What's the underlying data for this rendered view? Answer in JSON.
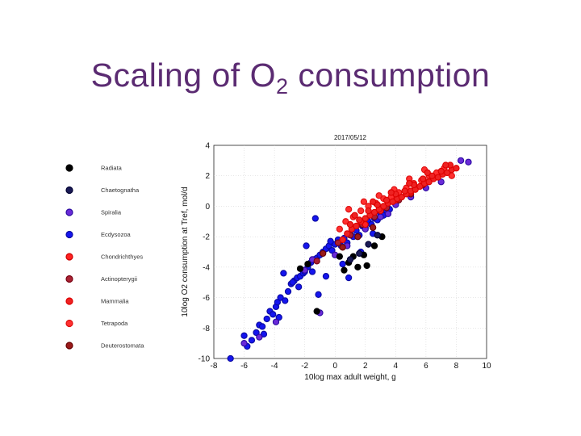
{
  "slide": {
    "title_main": "Scaling of O",
    "title_sub": "2",
    "title_rest": " consumption"
  },
  "chart_data": {
    "type": "scatter",
    "title": "2017/05/12",
    "xlabel": "10log max adult weight, g",
    "ylabel": "10log O2 consumption at Tref, mol/d",
    "xlim": [
      -8,
      10
    ],
    "ylim": [
      -10,
      4
    ],
    "xticks": [
      "-8",
      "-6",
      "-4",
      "-2",
      "0",
      "2",
      "4",
      "6",
      "8",
      "10"
    ],
    "yticks": [
      "4",
      "2",
      "0",
      "-2",
      "-4",
      "-6",
      "-8",
      "-10"
    ],
    "legend_position": "left",
    "series": [
      {
        "name": "Radiata",
        "color": "#000000",
        "stroke": "#000000",
        "x": [
          -2.3,
          -1.8,
          -1.2,
          0.3,
          0.9,
          1.5,
          2.1,
          1.9,
          2.6,
          3.1,
          1.2,
          0.6
        ],
        "y": [
          -4.1,
          -3.8,
          -6.9,
          -3.3,
          -3.7,
          -4.0,
          -3.9,
          -3.2,
          -2.6,
          -2.0,
          -3.3,
          -4.2
        ]
      },
      {
        "name": "Chaetognatha",
        "color": "#1a1a55",
        "stroke": "#000033",
        "x": [
          1.0,
          1.6,
          2.2,
          2.8
        ],
        "y": [
          -3.5,
          -3.1,
          -2.5,
          -1.9
        ]
      },
      {
        "name": "Spiralia",
        "color": "#6a2ad8",
        "stroke": "#2a0aa0",
        "x": [
          -6.0,
          -5.0,
          -3.9,
          -2.0,
          -1.5,
          -1.0,
          0.0,
          0.8,
          2.0,
          3.0,
          4.0,
          5.0,
          6.0,
          7.0,
          8.3,
          8.8,
          1.5,
          3.5
        ],
        "y": [
          -9.0,
          -8.6,
          -7.6,
          -4.2,
          -3.5,
          -7.0,
          -3.2,
          -2.6,
          -1.5,
          -0.7,
          0.1,
          0.6,
          1.2,
          1.6,
          3.0,
          2.9,
          -2.0,
          -0.5
        ]
      },
      {
        "name": "Ecdysozoa",
        "color": "#1515ee",
        "stroke": "#0a0aa0",
        "x": [
          -6.9,
          -6.0,
          -5.8,
          -5.5,
          -5.2,
          -5.0,
          -4.8,
          -4.5,
          -4.3,
          -4.1,
          -3.9,
          -3.8,
          -3.6,
          -3.3,
          -3.1,
          -2.9,
          -2.7,
          -2.5,
          -2.3,
          -2.1,
          -2.0,
          -1.8,
          -1.6,
          -1.4,
          -1.2,
          -1.0,
          -0.8,
          -0.6,
          -0.4,
          -0.2,
          0.0,
          0.2,
          0.4,
          0.6,
          0.8,
          1.0,
          1.2,
          1.4,
          1.6,
          1.8,
          2.0,
          2.2,
          2.4,
          2.6,
          2.8,
          3.0,
          3.2,
          3.4,
          3.6,
          -1.3,
          -1.9,
          -0.3,
          -2.4,
          -3.4,
          -1.1,
          0.5,
          -0.6,
          1.7,
          2.5,
          -4.7,
          -3.7,
          -2.8,
          -1.5,
          0.9
        ],
        "y": [
          -10.0,
          -8.5,
          -9.2,
          -8.8,
          -8.3,
          -7.8,
          -7.9,
          -7.4,
          -6.9,
          -7.1,
          -6.6,
          -6.3,
          -6.0,
          -6.2,
          -5.6,
          -5.1,
          -4.9,
          -4.7,
          -4.6,
          -4.4,
          -4.3,
          -4.0,
          -3.7,
          -3.5,
          -3.4,
          -3.2,
          -3.0,
          -2.8,
          -2.6,
          -2.9,
          -2.5,
          -2.2,
          -2.6,
          -2.1,
          -2.4,
          -1.8,
          -2.0,
          -1.6,
          -1.9,
          -1.3,
          -1.4,
          -1.0,
          -1.2,
          -0.8,
          -0.9,
          -0.5,
          -0.6,
          -0.3,
          -0.2,
          -0.8,
          -2.6,
          -2.3,
          -5.3,
          -4.4,
          -5.8,
          -3.8,
          -4.6,
          -3.0,
          -1.8,
          -8.4,
          -7.3,
          -5.0,
          -4.3,
          -4.7
        ]
      },
      {
        "name": "Chondrichthyes",
        "color": "#ff2222",
        "stroke": "#cc0000",
        "x": [
          2.0,
          3.0,
          4.0,
          5.0,
          6.0,
          7.0
        ],
        "y": [
          -1.2,
          -0.3,
          0.4,
          0.9,
          1.6,
          2.2
        ]
      },
      {
        "name": "Actinopterygii",
        "color": "#aa2233",
        "stroke": "#770011",
        "x": [
          -1.2,
          0.2,
          1.0,
          1.8,
          2.6,
          3.4,
          4.2,
          5.0,
          5.8,
          6.6
        ],
        "y": [
          -3.6,
          -2.4,
          -1.9,
          -1.2,
          -0.7,
          -0.1,
          0.4,
          0.8,
          1.4,
          1.9
        ]
      },
      {
        "name": "Mammalia",
        "color": "#ee2222",
        "stroke": "#dd0000",
        "x": [
          0.5,
          0.8,
          1.1,
          1.4,
          1.7,
          2.0,
          2.3,
          2.6,
          2.9,
          3.2,
          3.5,
          3.8,
          4.1,
          4.4,
          4.7,
          5.0,
          5.3,
          5.6,
          5.9,
          6.2,
          6.5,
          6.8,
          7.1,
          7.4,
          7.7,
          8.0,
          1.0,
          1.6,
          2.2,
          2.8,
          3.4,
          4.0,
          4.6,
          5.2,
          5.8,
          6.4,
          7.0,
          7.6,
          1.3,
          2.5,
          3.7,
          4.9,
          6.1,
          7.3
        ],
        "y": [
          -2.2,
          -1.8,
          -1.5,
          -1.3,
          -1.0,
          -0.8,
          -0.6,
          -0.4,
          -0.2,
          0.0,
          0.2,
          0.3,
          0.5,
          0.6,
          0.8,
          1.0,
          1.1,
          1.3,
          1.5,
          1.6,
          1.8,
          1.9,
          2.1,
          2.2,
          2.4,
          2.5,
          -1.2,
          -0.9,
          -0.3,
          0.1,
          0.4,
          0.8,
          1.0,
          1.4,
          1.8,
          2.0,
          2.3,
          2.7,
          -0.6,
          0.3,
          0.9,
          1.5,
          2.2,
          2.7
        ]
      },
      {
        "name": "Tetrapoda",
        "color": "#ff3030",
        "stroke": "#dd1010",
        "x": [
          0.3,
          0.7,
          1.2,
          1.7,
          2.2,
          2.7,
          3.2,
          3.7,
          4.2,
          4.7,
          5.2,
          5.7,
          6.2,
          6.7,
          7.2,
          7.7,
          0.9,
          1.9,
          2.9,
          3.9,
          4.9,
          5.9
        ],
        "y": [
          -1.5,
          -1.0,
          -0.7,
          -0.3,
          0.0,
          0.2,
          0.5,
          0.6,
          0.9,
          1.2,
          1.5,
          1.7,
          2.0,
          2.2,
          2.5,
          2.0,
          -0.2,
          0.3,
          0.7,
          1.1,
          1.8,
          2.4
        ]
      },
      {
        "name": "Deuterostomata",
        "color": "#9a1a1a",
        "stroke": "#660000",
        "x": [
          -0.8,
          0.5,
          1.5,
          2.5
        ],
        "y": [
          -3.1,
          -2.7,
          -2.0,
          -1.4
        ]
      }
    ]
  }
}
